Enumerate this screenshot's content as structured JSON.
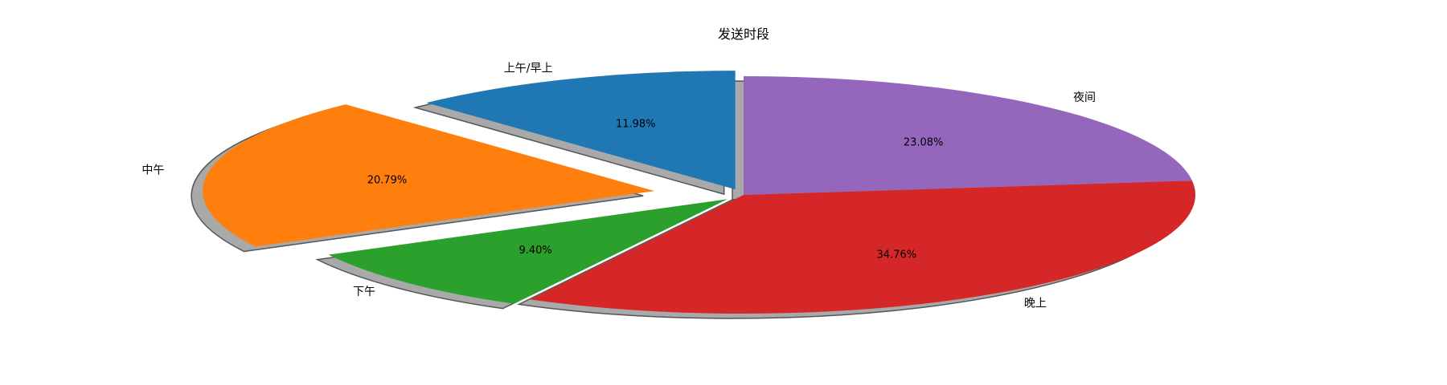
{
  "chart_data": {
    "type": "pie",
    "title": "发送时段",
    "categories": [
      "上午/早上",
      "中午",
      "下午",
      "晚上",
      "夜间"
    ],
    "values": [
      11.98,
      20.79,
      9.4,
      34.76,
      23.08
    ],
    "value_labels": [
      "11.98%",
      "20.79%",
      "9.40%",
      "34.76%",
      "23.08%"
    ],
    "colors": [
      "#1f77b4",
      "#ff7f0e",
      "#2ca02c",
      "#d62728",
      "#9467bd"
    ],
    "exploded": [
      0.05,
      0.2,
      0.05,
      0,
      0
    ],
    "shadow": true,
    "start_angle": 90,
    "direction": "counterclockwise"
  }
}
